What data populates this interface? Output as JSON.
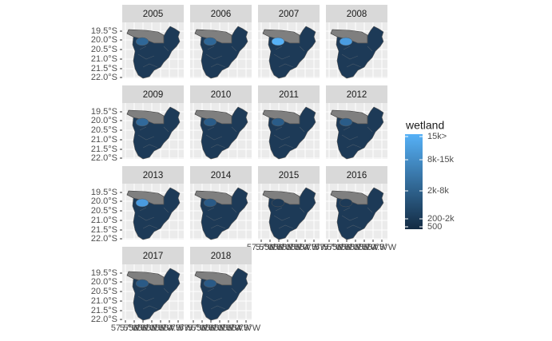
{
  "panels": [
    {
      "year": "2005",
      "highlight": "#2f6797"
    },
    {
      "year": "2006",
      "highlight": "#2f6797"
    },
    {
      "year": "2007",
      "highlight": "#56B1F7"
    },
    {
      "year": "2008",
      "highlight": "#4a9ce0"
    },
    {
      "year": "2009",
      "highlight": "#31699a"
    },
    {
      "year": "2010",
      "highlight": "#2a5c88"
    },
    {
      "year": "2011",
      "highlight": "#2a5c88"
    },
    {
      "year": "2012",
      "highlight": "#2a5c88"
    },
    {
      "year": "2013",
      "highlight": "#4a9be0"
    },
    {
      "year": "2014",
      "highlight": "#2a5a86"
    },
    {
      "year": "2015",
      "highlight": "#1d3a57"
    },
    {
      "year": "2016",
      "highlight": "#1d3a57"
    },
    {
      "year": "2017",
      "highlight": "#2a5a86"
    },
    {
      "year": "2018",
      "highlight": "#2a5a86"
    }
  ],
  "y_axis_labels": [
    "19.5°S",
    "20.0°S",
    "20.5°S",
    "21.0°S",
    "21.5°S",
    "22.0°S"
  ],
  "x_axis_labels": [
    "57.5°W",
    "57.0°W",
    "56.5°W",
    "56.0°W",
    "55.5°W",
    "55.0°W",
    "54.5°W"
  ],
  "legend": {
    "title": "wetland",
    "labels": [
      "15k>",
      "8k-15k",
      "2k-8k",
      "200-2k",
      "500"
    ],
    "colors": [
      "#56B1F7",
      "#132B43"
    ]
  }
}
